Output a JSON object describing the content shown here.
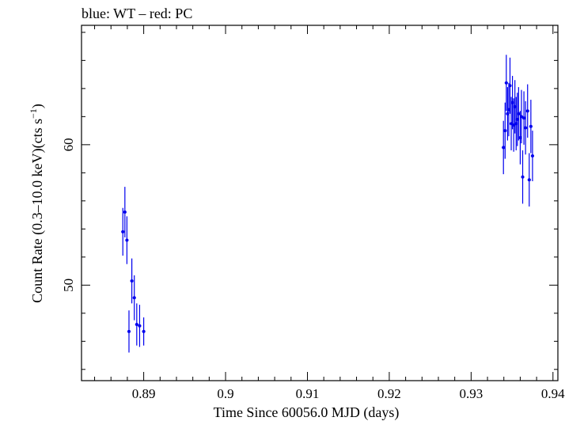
{
  "chart_data": {
    "type": "scatter",
    "title": "blue: WT – red: PC",
    "xlabel": "Time Since 60056.0 MJD (days)",
    "ylabel_main": "Count Rate (0.3–10.0 keV)(cts s",
    "ylabel_sup": "−1",
    "ylabel_end": ")",
    "xlim": [
      0.8824,
      0.9406
    ],
    "ylim": [
      43.2,
      68.5
    ],
    "x_ticks": [
      {
        "value": 0.89,
        "label": "0.89"
      },
      {
        "value": 0.9,
        "label": "0.9"
      },
      {
        "value": 0.91,
        "label": "0.91"
      },
      {
        "value": 0.92,
        "label": "0.92"
      },
      {
        "value": 0.93,
        "label": "0.93"
      },
      {
        "value": 0.94,
        "label": "0.94"
      }
    ],
    "y_ticks": [
      {
        "value": 50,
        "label": "50"
      },
      {
        "value": 60,
        "label": "60"
      }
    ],
    "grid": false,
    "series": [
      {
        "name": "WT",
        "color": "#0000ee",
        "points": [
          {
            "x": 0.88745,
            "y": 53.8,
            "yerr": 1.7
          },
          {
            "x": 0.8877,
            "y": 55.2,
            "yerr": 1.8
          },
          {
            "x": 0.88795,
            "y": 53.2,
            "yerr": 1.7
          },
          {
            "x": 0.8882,
            "y": 46.7,
            "yerr": 1.5
          },
          {
            "x": 0.88855,
            "y": 50.3,
            "yerr": 1.6
          },
          {
            "x": 0.88885,
            "y": 49.1,
            "yerr": 1.6
          },
          {
            "x": 0.88915,
            "y": 47.2,
            "yerr": 1.5
          },
          {
            "x": 0.8895,
            "y": 47.1,
            "yerr": 1.5
          },
          {
            "x": 0.89,
            "y": 46.7,
            "yerr": 1.0
          }
        ]
      },
      {
        "name": "WT",
        "color": "#0000ee",
        "points": [
          {
            "x": 0.93395,
            "y": 59.8,
            "yerr": 1.9
          },
          {
            "x": 0.93415,
            "y": 61.0,
            "yerr": 2.0
          },
          {
            "x": 0.9343,
            "y": 64.4,
            "yerr": 2.0
          },
          {
            "x": 0.93445,
            "y": 62.2,
            "yerr": 1.9
          },
          {
            "x": 0.9346,
            "y": 62.5,
            "yerr": 1.9
          },
          {
            "x": 0.93475,
            "y": 64.2,
            "yerr": 2.0
          },
          {
            "x": 0.9349,
            "y": 61.5,
            "yerr": 1.9
          },
          {
            "x": 0.93505,
            "y": 63.0,
            "yerr": 1.9
          },
          {
            "x": 0.9352,
            "y": 61.4,
            "yerr": 1.9
          },
          {
            "x": 0.93535,
            "y": 62.7,
            "yerr": 1.9
          },
          {
            "x": 0.9355,
            "y": 61.5,
            "yerr": 1.9
          },
          {
            "x": 0.93565,
            "y": 61.8,
            "yerr": 1.9
          },
          {
            "x": 0.9358,
            "y": 62.2,
            "yerr": 1.9
          },
          {
            "x": 0.936,
            "y": 60.5,
            "yerr": 1.9
          },
          {
            "x": 0.93615,
            "y": 62.0,
            "yerr": 1.9
          },
          {
            "x": 0.9363,
            "y": 57.7,
            "yerr": 1.9
          },
          {
            "x": 0.93645,
            "y": 61.9,
            "yerr": 1.9
          },
          {
            "x": 0.93665,
            "y": 61.2,
            "yerr": 1.9
          },
          {
            "x": 0.9369,
            "y": 62.4,
            "yerr": 1.9
          },
          {
            "x": 0.9371,
            "y": 57.5,
            "yerr": 1.9
          },
          {
            "x": 0.9373,
            "y": 61.3,
            "yerr": 1.9
          },
          {
            "x": 0.9375,
            "y": 59.2,
            "yerr": 1.8
          }
        ]
      }
    ]
  }
}
